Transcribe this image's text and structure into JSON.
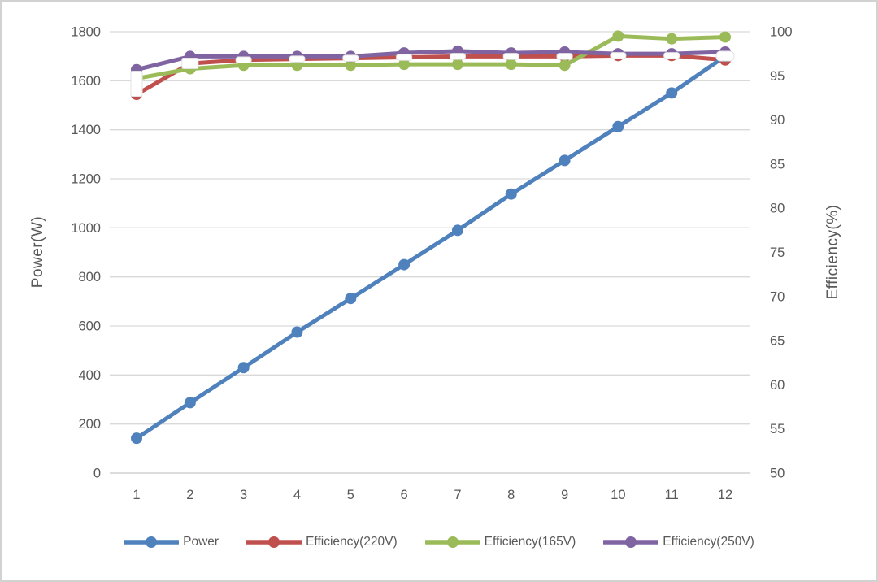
{
  "chart_data": {
    "type": "line",
    "title": "",
    "x_ticks": [
      "1",
      "2",
      "3",
      "4",
      "5",
      "6",
      "7",
      "8",
      "9",
      "10",
      "11",
      "12"
    ],
    "left_axis": {
      "label": "Power(W)",
      "min": 0,
      "max": 1800,
      "step": 200,
      "tick_labels": [
        "0",
        "200",
        "400",
        "600",
        "800",
        "1000",
        "1200",
        "1400",
        "1600",
        "1800"
      ]
    },
    "right_axis": {
      "label": "Efficiency(%)",
      "min": 50,
      "max": 100,
      "step": 5,
      "tick_labels": [
        "50",
        "55",
        "60",
        "65",
        "70",
        "75",
        "80",
        "85",
        "90",
        "95",
        "100"
      ]
    },
    "grid": true,
    "legend_position": "bottom",
    "series": [
      {
        "name": "Power",
        "axis": "left",
        "color": "#4F81BD",
        "marker": "circle",
        "values": [
          142,
          287,
          430,
          575,
          712,
          850,
          990,
          1138,
          1275,
          1413,
          1550,
          1700
        ]
      },
      {
        "name": "Efficiency(220V)",
        "axis": "right",
        "color": "#C0504D",
        "marker": "white-dash",
        "values": [
          92.9,
          96.4,
          96.8,
          96.9,
          97.0,
          97.1,
          97.2,
          97.2,
          97.2,
          97.3,
          97.3,
          96.8
        ]
      },
      {
        "name": "Efficiency(165V)",
        "axis": "right",
        "color": "#9BBB59",
        "marker": "circle",
        "values": [
          94.7,
          95.8,
          96.2,
          96.2,
          96.2,
          96.3,
          96.3,
          96.3,
          96.2,
          99.5,
          99.2,
          99.4
        ]
      },
      {
        "name": "Efficiency(250V)",
        "axis": "right",
        "color": "#8064A2",
        "marker": "circle",
        "values": [
          95.7,
          97.2,
          97.2,
          97.2,
          97.2,
          97.6,
          97.8,
          97.6,
          97.7,
          97.5,
          97.5,
          97.7
        ]
      }
    ],
    "colors": {
      "text": "#595959",
      "gridline": "#D9D9D9",
      "axisline": "#C6C6C6",
      "marker_fill_white": "#FFFFFF"
    }
  }
}
